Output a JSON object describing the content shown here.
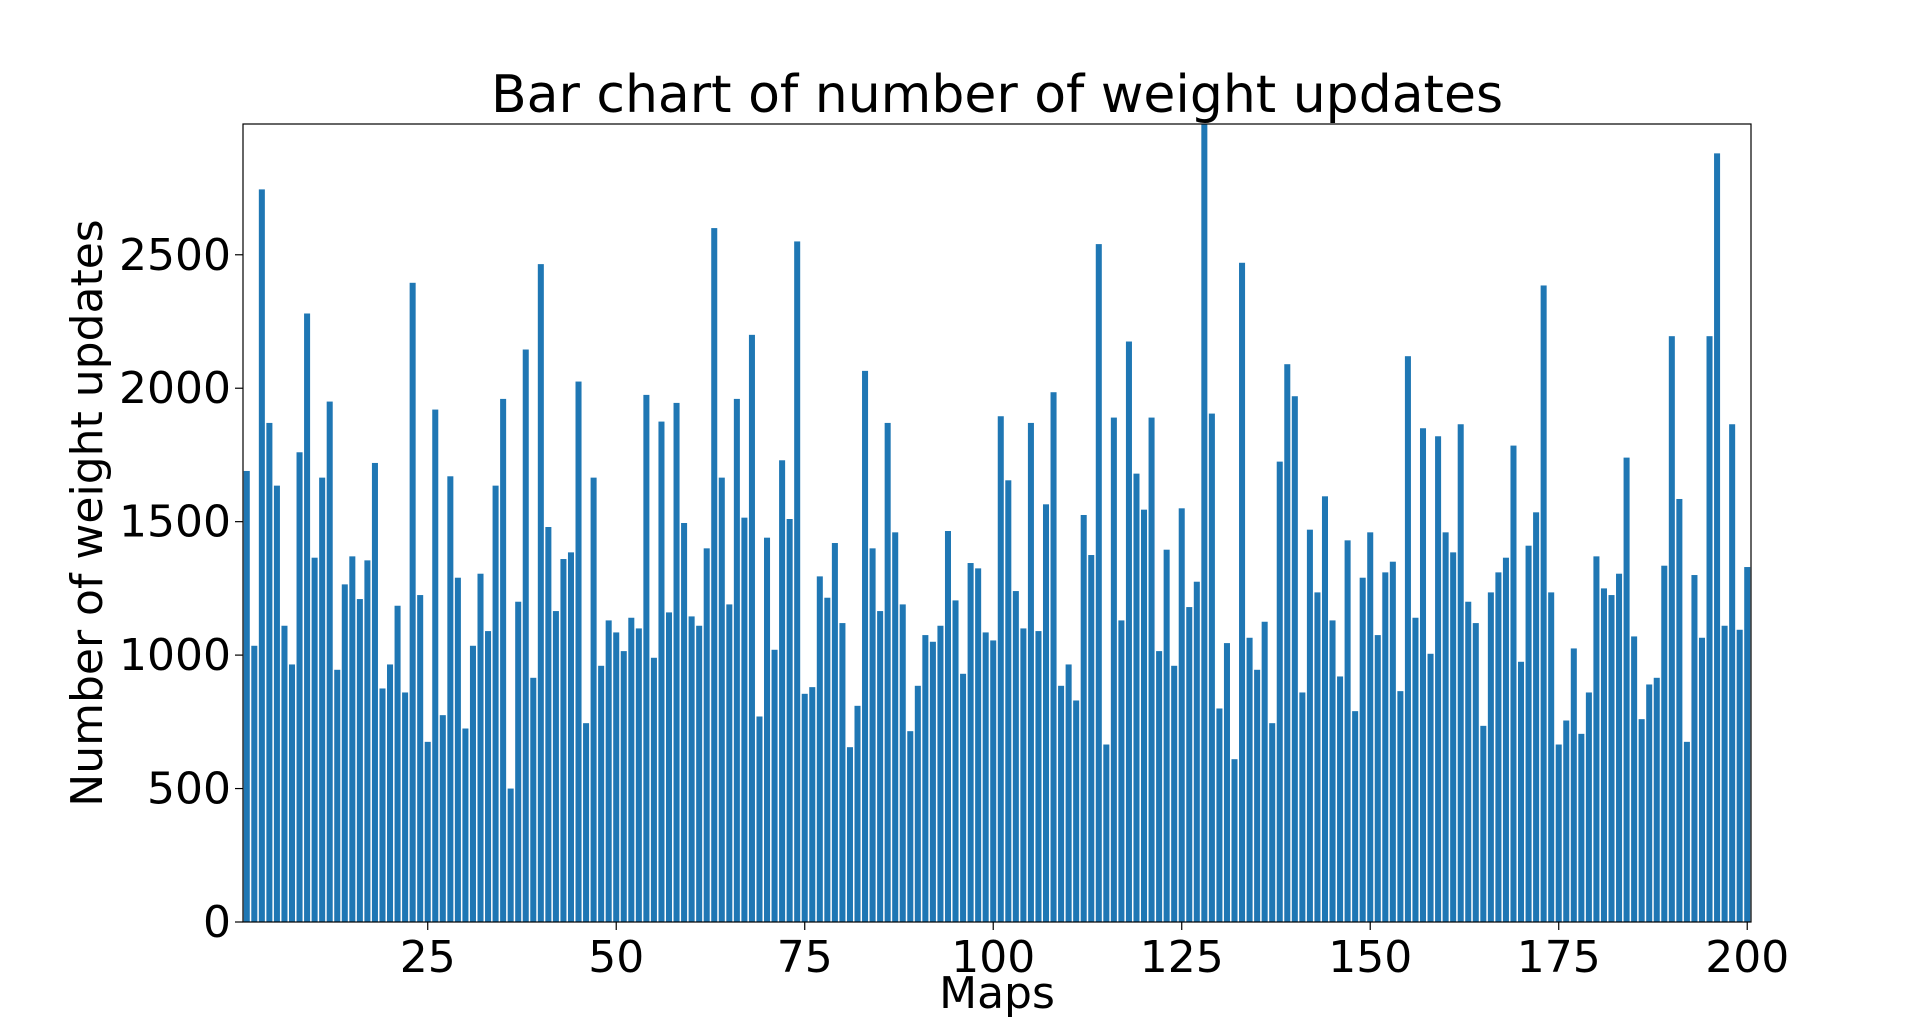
{
  "chart_data": {
    "type": "bar",
    "title": "Bar chart of number of weight updates",
    "xlabel": "Maps",
    "ylabel": "Number of weight updates",
    "xlim": [
      0.5,
      200.5
    ],
    "ylim": [
      0,
      2990
    ],
    "xticks": [
      25,
      50,
      75,
      100,
      125,
      150,
      175,
      200
    ],
    "yticks": [
      0,
      500,
      1000,
      1500,
      2000,
      2500
    ],
    "grid": false,
    "legend": "none",
    "bar_color": "#1f77b4",
    "x": [
      1,
      2,
      3,
      4,
      5,
      6,
      7,
      8,
      9,
      10,
      11,
      12,
      13,
      14,
      15,
      16,
      17,
      18,
      19,
      20,
      21,
      22,
      23,
      24,
      25,
      26,
      27,
      28,
      29,
      30,
      31,
      32,
      33,
      34,
      35,
      36,
      37,
      38,
      39,
      40,
      41,
      42,
      43,
      44,
      45,
      46,
      47,
      48,
      49,
      50,
      51,
      52,
      53,
      54,
      55,
      56,
      57,
      58,
      59,
      60,
      61,
      62,
      63,
      64,
      65,
      66,
      67,
      68,
      69,
      70,
      71,
      72,
      73,
      74,
      75,
      76,
      77,
      78,
      79,
      80,
      81,
      82,
      83,
      84,
      85,
      86,
      87,
      88,
      89,
      90,
      91,
      92,
      93,
      94,
      95,
      96,
      97,
      98,
      99,
      100,
      101,
      102,
      103,
      104,
      105,
      106,
      107,
      108,
      109,
      110,
      111,
      112,
      113,
      114,
      115,
      116,
      117,
      118,
      119,
      120,
      121,
      122,
      123,
      124,
      125,
      126,
      127,
      128,
      129,
      130,
      131,
      132,
      133,
      134,
      135,
      136,
      137,
      138,
      139,
      140,
      141,
      142,
      143,
      144,
      145,
      146,
      147,
      148,
      149,
      150,
      151,
      152,
      153,
      154,
      155,
      156,
      157,
      158,
      159,
      160,
      161,
      162,
      163,
      164,
      165,
      166,
      167,
      168,
      169,
      170,
      171,
      172,
      173,
      174,
      175,
      176,
      177,
      178,
      179,
      180,
      181,
      182,
      183,
      184,
      185,
      186,
      187,
      188,
      189,
      190,
      191,
      192,
      193,
      194,
      195,
      196,
      197,
      198,
      199,
      200
    ],
    "values": [
      1690,
      1035,
      2745,
      1870,
      1635,
      1110,
      965,
      1760,
      2280,
      1365,
      1665,
      1950,
      945,
      1265,
      1370,
      1210,
      1355,
      1720,
      875,
      965,
      1185,
      860,
      2395,
      1225,
      675,
      1920,
      775,
      1670,
      1290,
      725,
      1035,
      1305,
      1090,
      1635,
      1960,
      500,
      1200,
      2145,
      915,
      2465,
      1480,
      1165,
      1360,
      1385,
      2025,
      745,
      1665,
      960,
      1130,
      1085,
      1015,
      1140,
      1100,
      1975,
      990,
      1875,
      1160,
      1945,
      1495,
      1145,
      1110,
      1400,
      2600,
      1665,
      1190,
      1960,
      1515,
      2200,
      770,
      1440,
      1020,
      1730,
      1510,
      2550,
      855,
      880,
      1295,
      1215,
      1420,
      1120,
      655,
      810,
      2065,
      1400,
      1165,
      1870,
      1460,
      1190,
      715,
      885,
      1075,
      1050,
      1110,
      1465,
      1205,
      930,
      1345,
      1325,
      1085,
      1055,
      1895,
      1655,
      1240,
      1100,
      1870,
      1090,
      1565,
      1985,
      885,
      965,
      830,
      1525,
      1375,
      2540,
      665,
      1890,
      1130,
      2175,
      1680,
      1545,
      1890,
      1015,
      1395,
      960,
      1550,
      1180,
      1275,
      2990,
      1905,
      800,
      1045,
      610,
      2470,
      1065,
      945,
      1125,
      745,
      1725,
      2090,
      1970,
      860,
      1470,
      1235,
      1595,
      1130,
      920,
      1430,
      790,
      1290,
      1460,
      1075,
      1310,
      1350,
      865,
      2120,
      1140,
      1850,
      1005,
      1820,
      1460,
      1385,
      1865,
      1200,
      1120,
      735,
      1235,
      1310,
      1365,
      1785,
      975,
      1410,
      1535,
      2385,
      1235,
      665,
      755,
      1025,
      705,
      860,
      1370,
      1250,
      1225,
      1305,
      1740,
      1070,
      760,
      890,
      915,
      1335,
      2195,
      1585,
      675,
      1300,
      1065,
      2195,
      2880,
      1110,
      1865,
      1095,
      1330
    ]
  }
}
